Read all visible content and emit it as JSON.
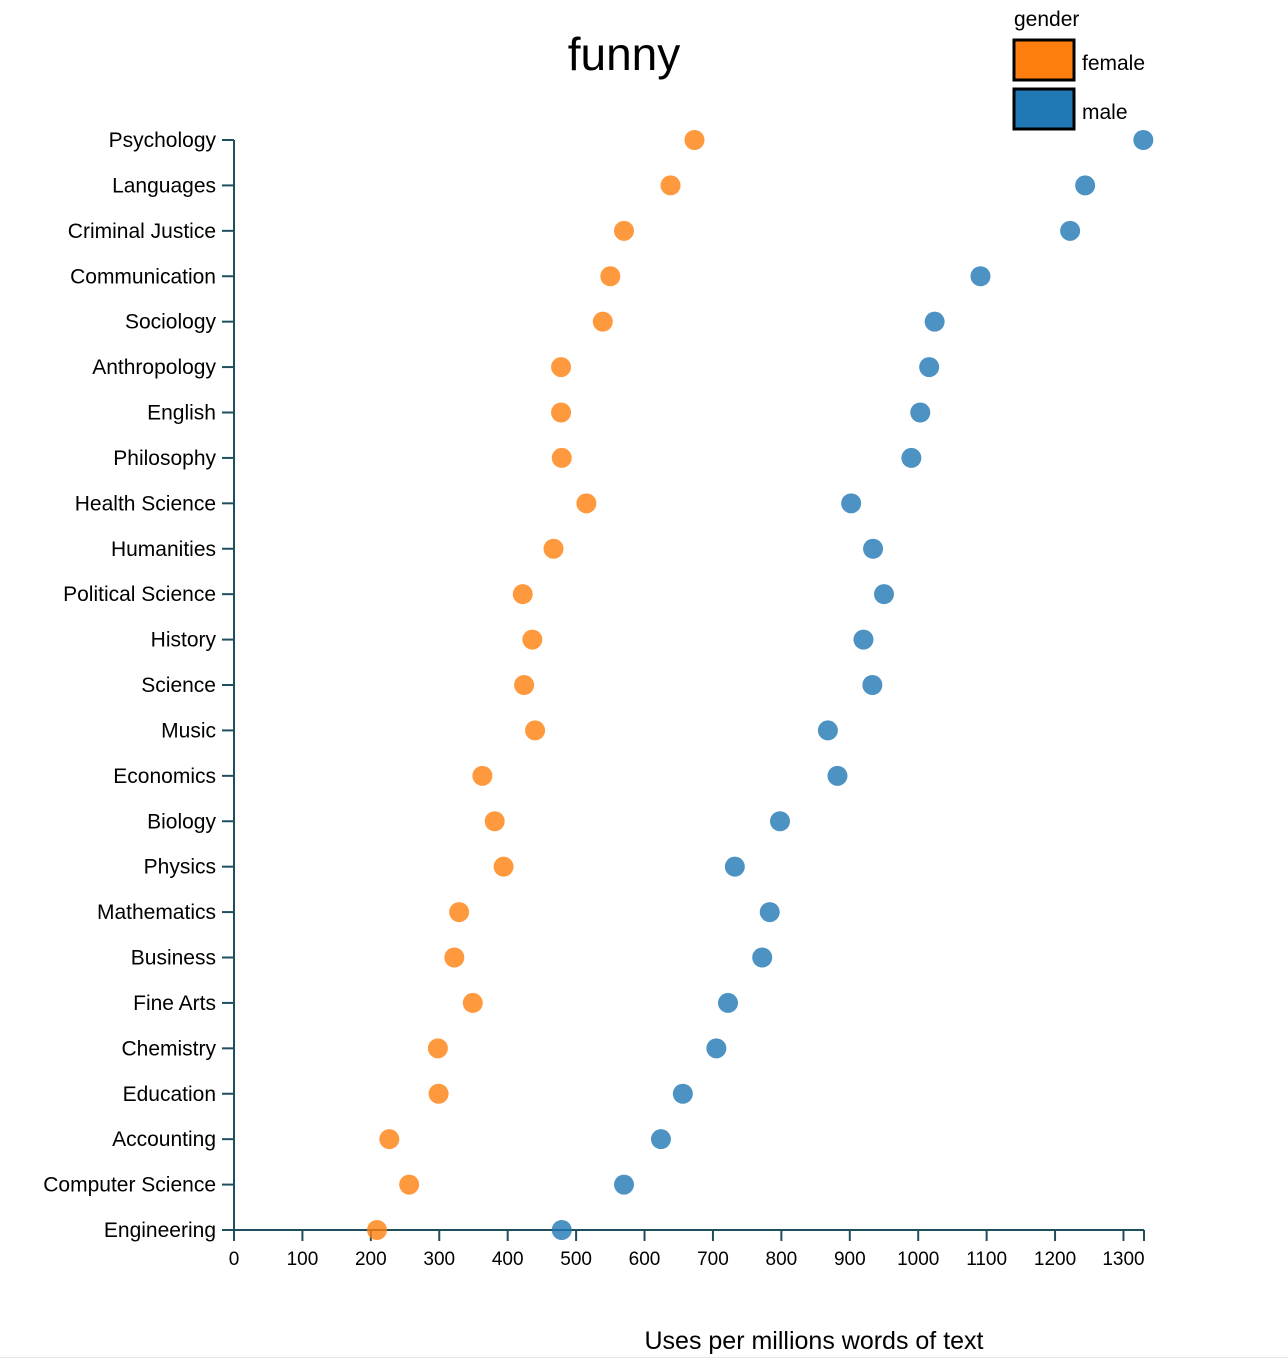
{
  "chart_data": {
    "type": "scatter",
    "title": "funny",
    "xlabel": "Uses per millions words of text",
    "ylabel": "",
    "xlim": [
      0,
      1330
    ],
    "x_ticks": [
      "0",
      "100",
      "200",
      "300",
      "400",
      "500",
      "600",
      "700",
      "800",
      "900",
      "1000",
      "1100",
      "1200",
      "1300"
    ],
    "legend": {
      "title": "gender",
      "placement": "top-right",
      "entries": [
        {
          "name": "female",
          "color": "#ff7f0e"
        },
        {
          "name": "male",
          "color": "#1f77b4"
        }
      ]
    },
    "categories": [
      "Psychology",
      "Languages",
      "Criminal Justice",
      "Communication",
      "Sociology",
      "Anthropology",
      "English",
      "Philosophy",
      "Health Science",
      "Humanities",
      "Political Science",
      "History",
      "Science",
      "Music",
      "Economics",
      "Biology",
      "Physics",
      "Mathematics",
      "Business",
      "Fine Arts",
      "Chemistry",
      "Education",
      "Accounting",
      "Computer Science",
      "Engineering"
    ],
    "series": [
      {
        "name": "female",
        "color": "#ff7f0e",
        "values": [
          673,
          638,
          570,
          550,
          539,
          478,
          478,
          479,
          515,
          467,
          422,
          436,
          424,
          440,
          363,
          381,
          394,
          329,
          322,
          349,
          298,
          299,
          227,
          256,
          209
        ]
      },
      {
        "name": "male",
        "color": "#1f77b4",
        "values": [
          1329,
          1244,
          1222,
          1091,
          1024,
          1016,
          1003,
          990,
          902,
          934,
          950,
          920,
          933,
          868,
          882,
          798,
          732,
          783,
          772,
          722,
          705,
          656,
          624,
          570,
          479
        ]
      }
    ]
  }
}
